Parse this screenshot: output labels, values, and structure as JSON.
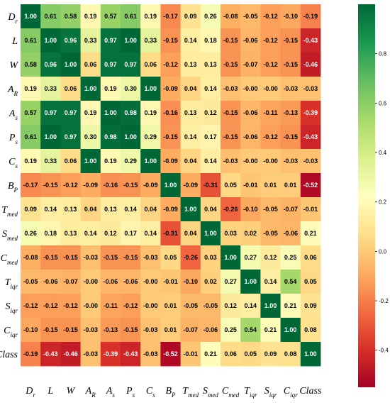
{
  "chart_data": {
    "type": "heatmap",
    "title": "",
    "xlabel": "",
    "ylabel": "",
    "labels": [
      {
        "base": "D",
        "sub": "r"
      },
      {
        "base": "L",
        "sub": ""
      },
      {
        "base": "W",
        "sub": ""
      },
      {
        "base": "A",
        "sub": "R"
      },
      {
        "base": "A",
        "sub": "s"
      },
      {
        "base": "P",
        "sub": "s"
      },
      {
        "base": "C",
        "sub": "s"
      },
      {
        "base": "B",
        "sub": "P"
      },
      {
        "base": "T",
        "sub": "med"
      },
      {
        "base": "S",
        "sub": "med"
      },
      {
        "base": "C",
        "sub": "med"
      },
      {
        "base": "T",
        "sub": "iqr"
      },
      {
        "base": "S",
        "sub": "iqr"
      },
      {
        "base": "C",
        "sub": "iqr"
      },
      {
        "base": "Class",
        "sub": ""
      }
    ],
    "values": [
      [
        1.0,
        0.61,
        0.58,
        0.19,
        0.57,
        0.61,
        0.19,
        -0.17,
        0.09,
        0.26,
        -0.08,
        -0.05,
        -0.12,
        -0.1,
        -0.19
      ],
      [
        0.61,
        1.0,
        0.96,
        0.33,
        0.97,
        1.0,
        0.33,
        -0.15,
        0.14,
        0.18,
        -0.15,
        -0.06,
        -0.12,
        -0.15,
        -0.43
      ],
      [
        0.58,
        0.96,
        1.0,
        0.06,
        0.97,
        0.97,
        0.06,
        -0.12,
        0.13,
        0.13,
        -0.15,
        -0.07,
        -0.12,
        -0.15,
        -0.46
      ],
      [
        0.19,
        0.33,
        0.06,
        1.0,
        0.19,
        0.3,
        1.0,
        -0.09,
        0.04,
        0.14,
        -0.03,
        -0.0,
        -0.0,
        -0.03,
        -0.03
      ],
      [
        0.57,
        0.97,
        0.97,
        0.19,
        1.0,
        0.98,
        0.19,
        -0.16,
        0.13,
        0.12,
        -0.15,
        -0.06,
        -0.11,
        -0.13,
        -0.39
      ],
      [
        0.61,
        1.0,
        0.97,
        0.3,
        0.98,
        1.0,
        0.29,
        -0.15,
        0.14,
        0.17,
        -0.15,
        -0.06,
        -0.12,
        -0.15,
        -0.43
      ],
      [
        0.19,
        0.33,
        0.06,
        1.0,
        0.19,
        0.29,
        1.0,
        -0.09,
        0.04,
        0.14,
        -0.03,
        -0.0,
        -0.0,
        -0.03,
        -0.03
      ],
      [
        -0.17,
        -0.15,
        -0.12,
        -0.09,
        -0.16,
        -0.15,
        -0.09,
        1.0,
        -0.09,
        -0.31,
        0.05,
        -0.01,
        0.01,
        0.01,
        -0.52
      ],
      [
        0.09,
        0.14,
        0.13,
        0.04,
        0.13,
        0.14,
        0.04,
        -0.09,
        1.0,
        0.04,
        -0.26,
        -0.1,
        -0.05,
        -0.07,
        -0.01
      ],
      [
        0.26,
        0.18,
        0.13,
        0.14,
        0.12,
        0.17,
        0.14,
        -0.31,
        0.04,
        1.0,
        0.03,
        0.02,
        -0.05,
        -0.06,
        0.21
      ],
      [
        -0.08,
        -0.15,
        -0.15,
        -0.03,
        -0.15,
        -0.15,
        -0.03,
        0.05,
        -0.26,
        0.03,
        1.0,
        0.27,
        0.12,
        0.25,
        0.06
      ],
      [
        -0.05,
        -0.06,
        -0.07,
        -0.0,
        -0.06,
        -0.06,
        -0.0,
        -0.01,
        -0.1,
        0.02,
        0.27,
        1.0,
        0.14,
        0.54,
        0.05
      ],
      [
        -0.12,
        -0.12,
        -0.12,
        -0.0,
        -0.11,
        -0.12,
        -0.0,
        0.01,
        -0.05,
        -0.05,
        0.12,
        0.14,
        1.0,
        0.21,
        0.09
      ],
      [
        -0.1,
        -0.15,
        -0.15,
        -0.03,
        -0.13,
        -0.15,
        -0.03,
        0.01,
        -0.07,
        -0.06,
        0.25,
        0.54,
        0.21,
        1.0,
        0.08
      ],
      [
        -0.19,
        -0.43,
        -0.46,
        -0.03,
        -0.39,
        -0.43,
        -0.03,
        -0.52,
        -0.01,
        0.21,
        0.06,
        0.05,
        0.09,
        0.08,
        1.0
      ]
    ],
    "value_range": [
      -0.55,
      1.0
    ],
    "colorbar": {
      "ticks": [
        0.8,
        0.6,
        0.4,
        0.2,
        0.0,
        -0.2,
        -0.4
      ],
      "tick_labels": [
        "0.8",
        "0.6",
        "0.4",
        "0.2",
        "0.0",
        "-0.2",
        "-0.4"
      ],
      "placement": "right"
    },
    "colormap": "RdYlGn",
    "colormap_stops": [
      "#a50026",
      "#d73027",
      "#f46d43",
      "#fdae61",
      "#fee08b",
      "#ffffbf",
      "#d9ef8b",
      "#a6d96a",
      "#66bd63",
      "#1a9850",
      "#006837"
    ],
    "grid": false
  }
}
